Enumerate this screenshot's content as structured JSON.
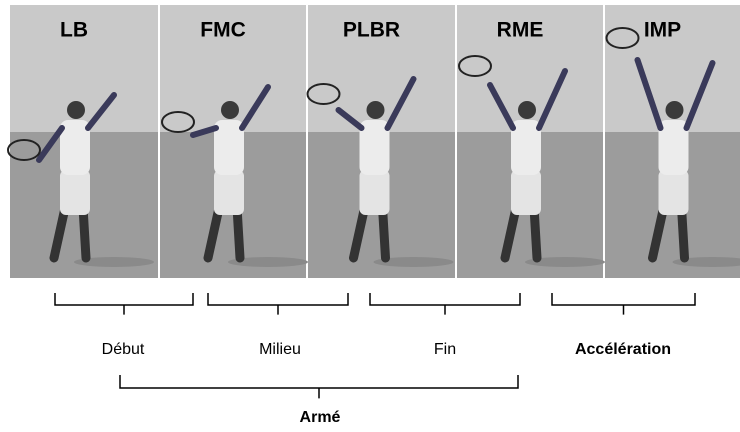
{
  "panels": [
    "LB",
    "FMC",
    "PLBR",
    "RME",
    "IMP"
  ],
  "phases": [
    "Début",
    "Milieu",
    "Fin",
    "Accélération"
  ],
  "group": "Armé"
}
